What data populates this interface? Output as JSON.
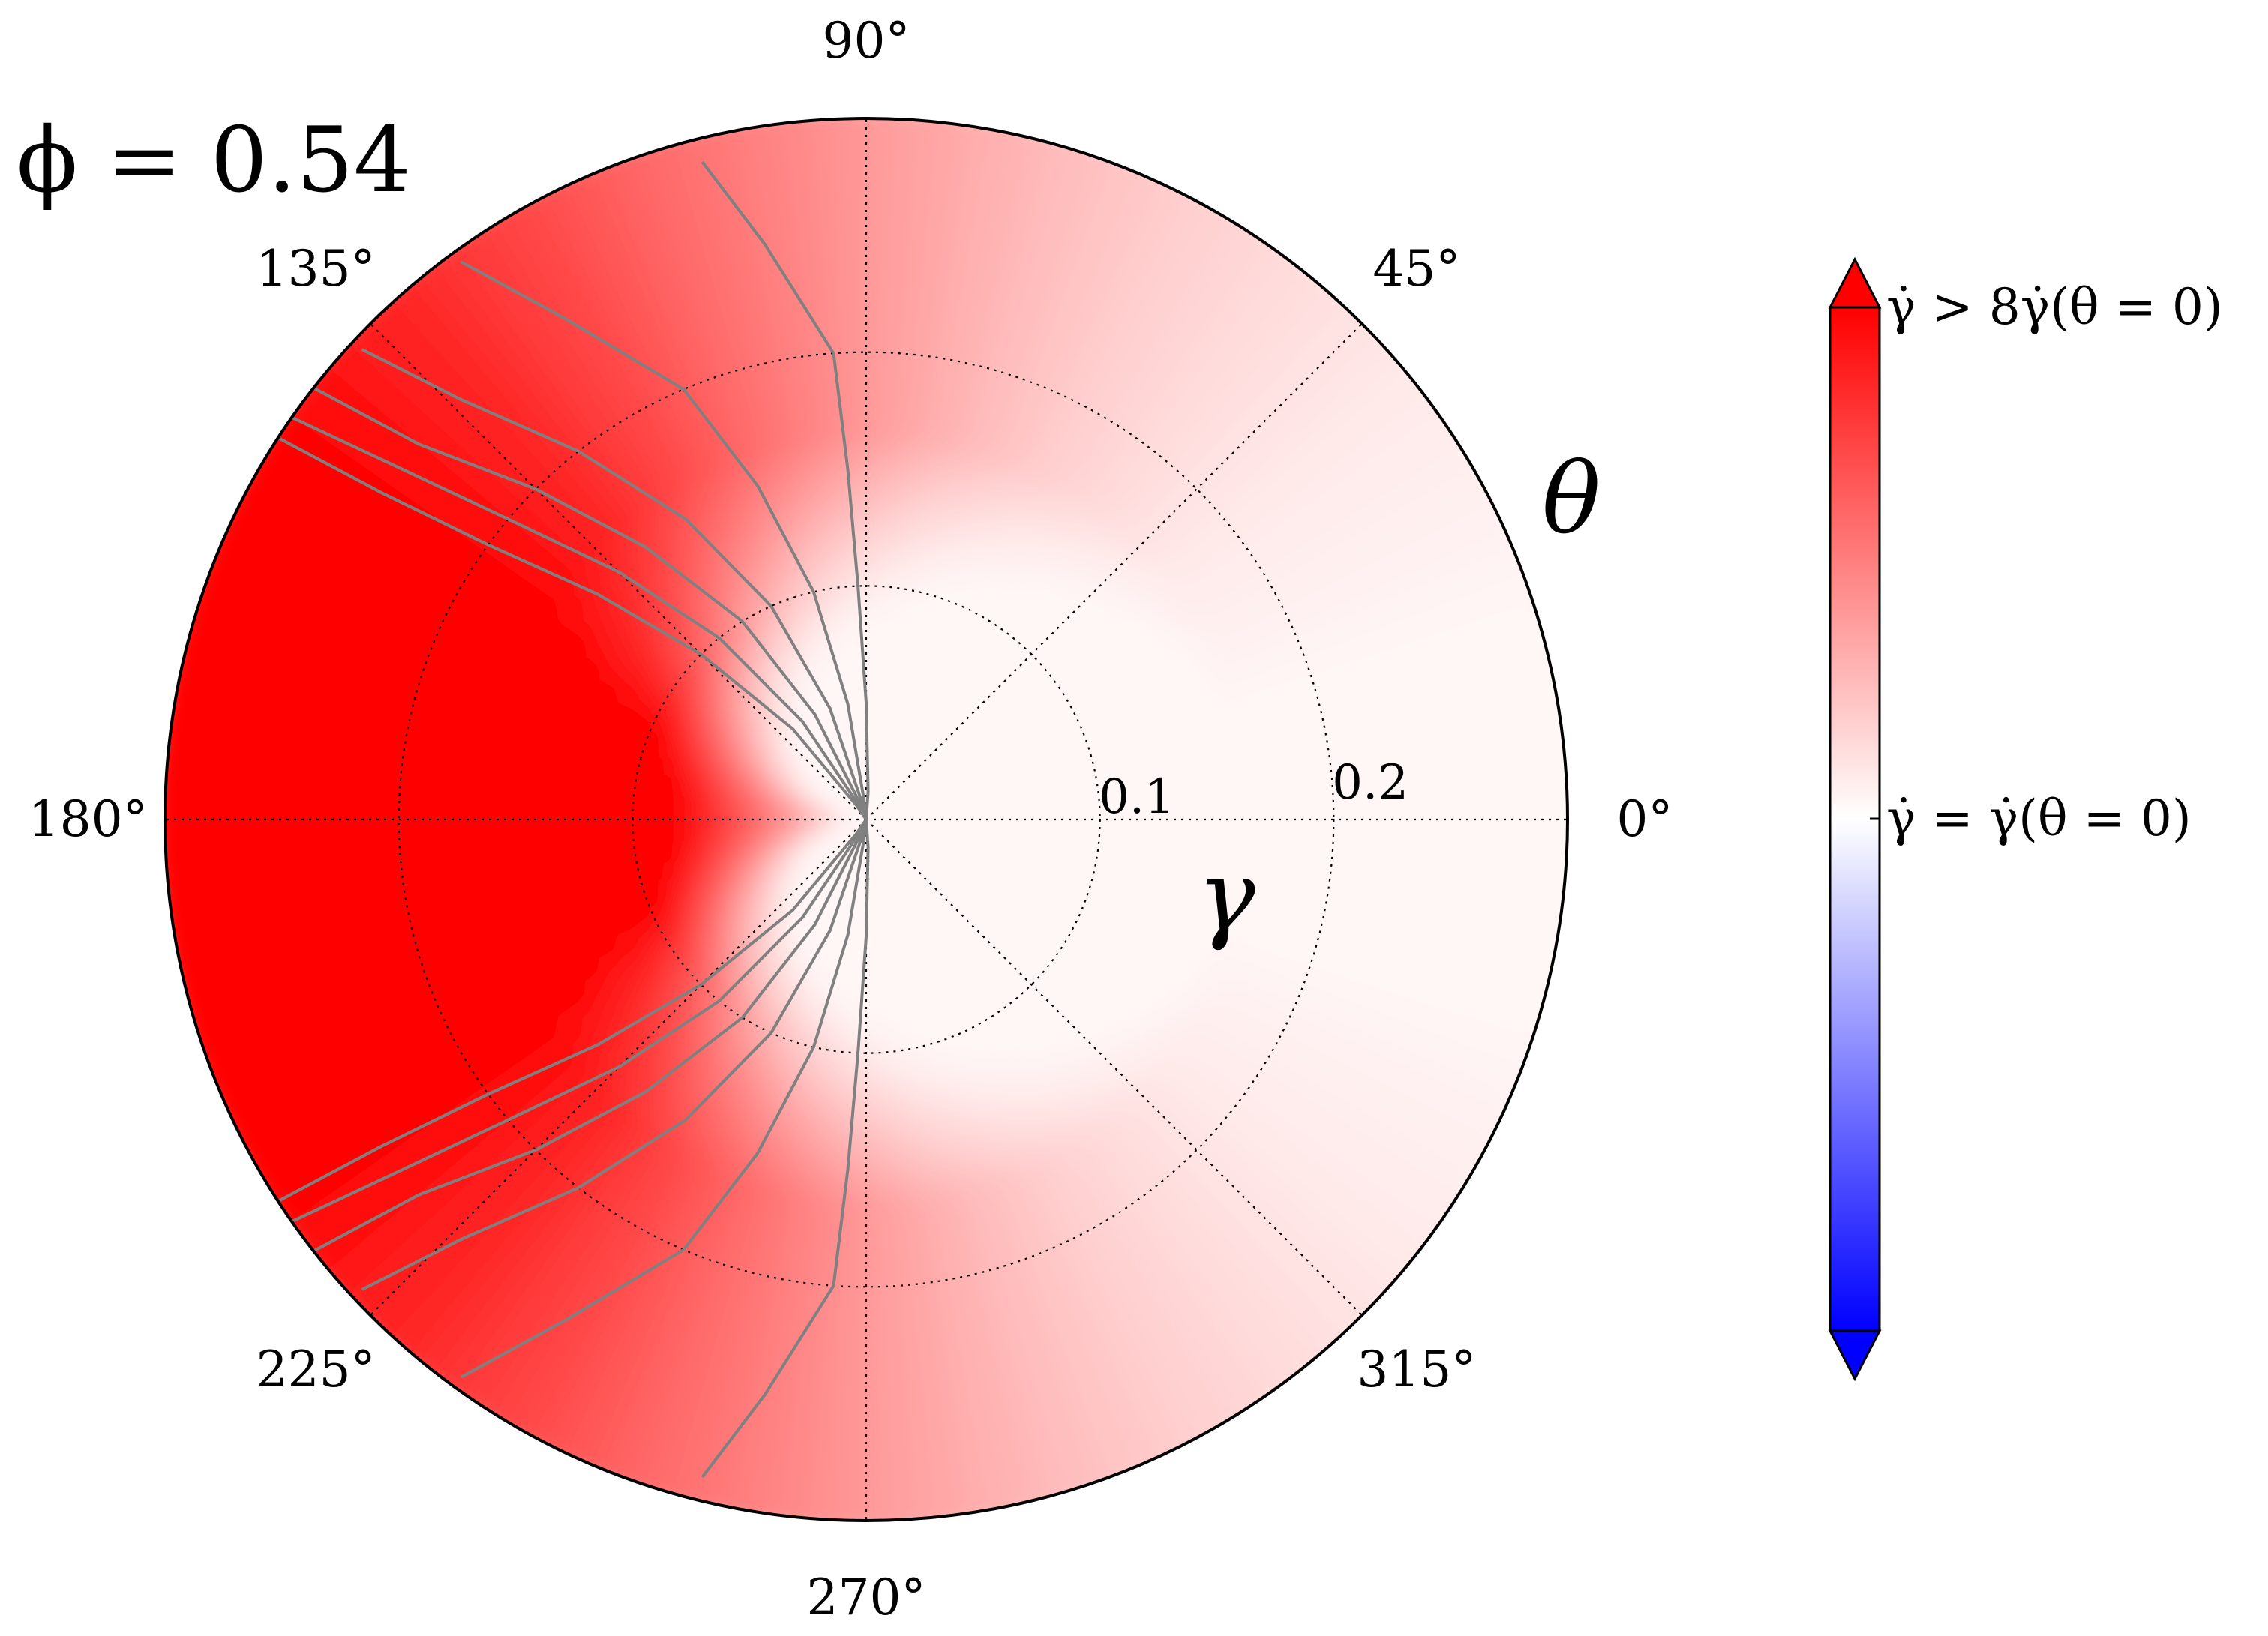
{
  "chart_data": {
    "type": "heatmap",
    "projection": "polar",
    "annotation": "ϕ = 0.54",
    "theta_label": "θ",
    "r_label": "γ",
    "theta_ticks": [
      0,
      45,
      90,
      135,
      180,
      225,
      270,
      315
    ],
    "theta_tick_labels": [
      "0°",
      "45°",
      "90°",
      "135°",
      "180°",
      "225°",
      "270°",
      "315°"
    ],
    "r_ticks": [
      0.1,
      0.2
    ],
    "r_tick_labels": [
      "0.1",
      "0.2"
    ],
    "rlim": [
      0,
      0.3
    ],
    "grid": true,
    "colormap": {
      "name": "bwr",
      "low_color": "#0000ff",
      "mid_color": "#ffffff",
      "high_color": "#ff0000",
      "extend": "both"
    },
    "colorbar": {
      "position": "right",
      "labels": [
        {
          "value": "max",
          "text": "γ̇ > 8γ̇(θ = 0)"
        },
        {
          "value": "mid",
          "text": "γ̇ = γ̇(θ = 0)"
        }
      ]
    },
    "contour_color": "#808080",
    "contour_levels": [
      {
        "level": 1,
        "points": [
          [
            86,
            0.012
          ],
          [
            90,
            0.05
          ],
          [
            92,
            0.1
          ],
          [
            93,
            0.15
          ],
          [
            94,
            0.2
          ],
          [
            100,
            0.25
          ],
          [
            104,
            0.29
          ]
        ]
      },
      {
        "level": 2,
        "points": [
          [
            97,
            0.011
          ],
          [
            99,
            0.05
          ],
          [
            103,
            0.1
          ],
          [
            108,
            0.15
          ],
          [
            113,
            0.2
          ],
          [
            121,
            0.25
          ],
          [
            126,
            0.295
          ]
        ]
      },
      {
        "level": 3,
        "points": [
          [
            105,
            0.01
          ],
          [
            108,
            0.05
          ],
          [
            114,
            0.1
          ],
          [
            121,
            0.15
          ],
          [
            128,
            0.2
          ],
          [
            134,
            0.25
          ],
          [
            137,
            0.295
          ]
        ]
      },
      {
        "level": 4,
        "points": [
          [
            112,
            0.009
          ],
          [
            116,
            0.05
          ],
          [
            122,
            0.1
          ],
          [
            129,
            0.15
          ],
          [
            135,
            0.2
          ],
          [
            140,
            0.25
          ],
          [
            142,
            0.3
          ]
        ]
      },
      {
        "level": 5,
        "points": [
          [
            118,
            0.008
          ],
          [
            123,
            0.05
          ],
          [
            129,
            0.1
          ],
          [
            135,
            0.15
          ],
          [
            140,
            0.2
          ],
          [
            143,
            0.25
          ],
          [
            145,
            0.3
          ]
        ]
      },
      {
        "level": 6,
        "points": [
          [
            124,
            0.007
          ],
          [
            129,
            0.05
          ],
          [
            135,
            0.1
          ],
          [
            140,
            0.15
          ],
          [
            144,
            0.2
          ],
          [
            146,
            0.25
          ],
          [
            147,
            0.3
          ]
        ]
      }
    ],
    "field_description": "rate relative to theta=0; strong maximum along 180 deg for gamma >= 0.1, near 1 for theta in (-90, 90)"
  }
}
